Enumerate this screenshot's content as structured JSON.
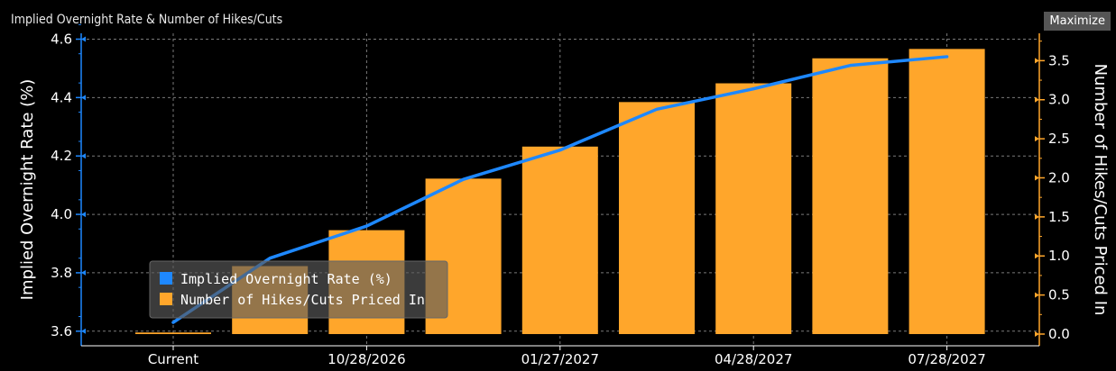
{
  "header": {
    "title": "Implied Overnight Rate & Number of Hikes/Cuts",
    "maximize_label": "Maximize"
  },
  "colors": {
    "rate_line": "#1e88ff",
    "bars": "#ffa62b",
    "grid": "#7a7a7a",
    "axis": "#ffa62b"
  },
  "chart_data": {
    "type": "bar",
    "title": "Implied Overnight Rate & Number of Hikes/Cuts",
    "x": [
      "Current",
      "",
      "10/28/2026",
      "",
      "01/27/2027",
      "",
      "04/28/2027",
      "",
      "07/28/2027"
    ],
    "x_tick_labels": [
      "Current",
      "10/28/2026",
      "01/27/2027",
      "04/28/2027",
      "07/28/2027"
    ],
    "series": [
      {
        "name": "Implied Overnight Rate (%)",
        "type": "line",
        "axis": "left",
        "points": [
          {
            "x": 0,
            "y": 3.63
          },
          {
            "x": 1,
            "y": 3.85
          },
          {
            "x": 2,
            "y": 3.96
          },
          {
            "x": 3,
            "y": 4.12
          },
          {
            "x": 4,
            "y": 4.22
          },
          {
            "x": 5,
            "y": 4.36
          },
          {
            "x": 6,
            "y": 4.43
          },
          {
            "x": 7,
            "y": 4.51
          },
          {
            "x": 8,
            "y": 4.54
          }
        ]
      },
      {
        "name": "Number of Hikes/Cuts Priced In",
        "type": "bar",
        "axis": "right",
        "values": [
          0.02,
          0.87,
          1.33,
          1.99,
          2.4,
          2.97,
          3.21,
          3.53,
          3.65
        ]
      }
    ],
    "ylabel": "Implied Overnight Rate (%)",
    "y2label": "Number of Hikes/Cuts Priced In",
    "ylim": [
      3.55,
      4.62
    ],
    "y_ticks": [
      "3.6",
      "3.8",
      "4.0",
      "4.2",
      "4.4",
      "4.6"
    ],
    "y2lim": [
      -0.15,
      3.85
    ],
    "y2_ticks": [
      "0.0",
      "0.5",
      "1.0",
      "1.5",
      "2.0",
      "2.5",
      "3.0",
      "3.5"
    ],
    "grid": true,
    "legend": "bottom-left"
  }
}
